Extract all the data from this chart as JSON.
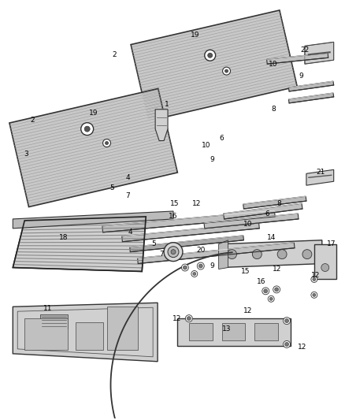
{
  "background_color": "#ffffff",
  "fig_width": 4.38,
  "fig_height": 5.33,
  "dpi": 100,
  "dark": "#333333",
  "mid": "#888888",
  "light": "#cccccc",
  "panel_fill": "#d8d8d8",
  "panel_stroke": "#444444"
}
